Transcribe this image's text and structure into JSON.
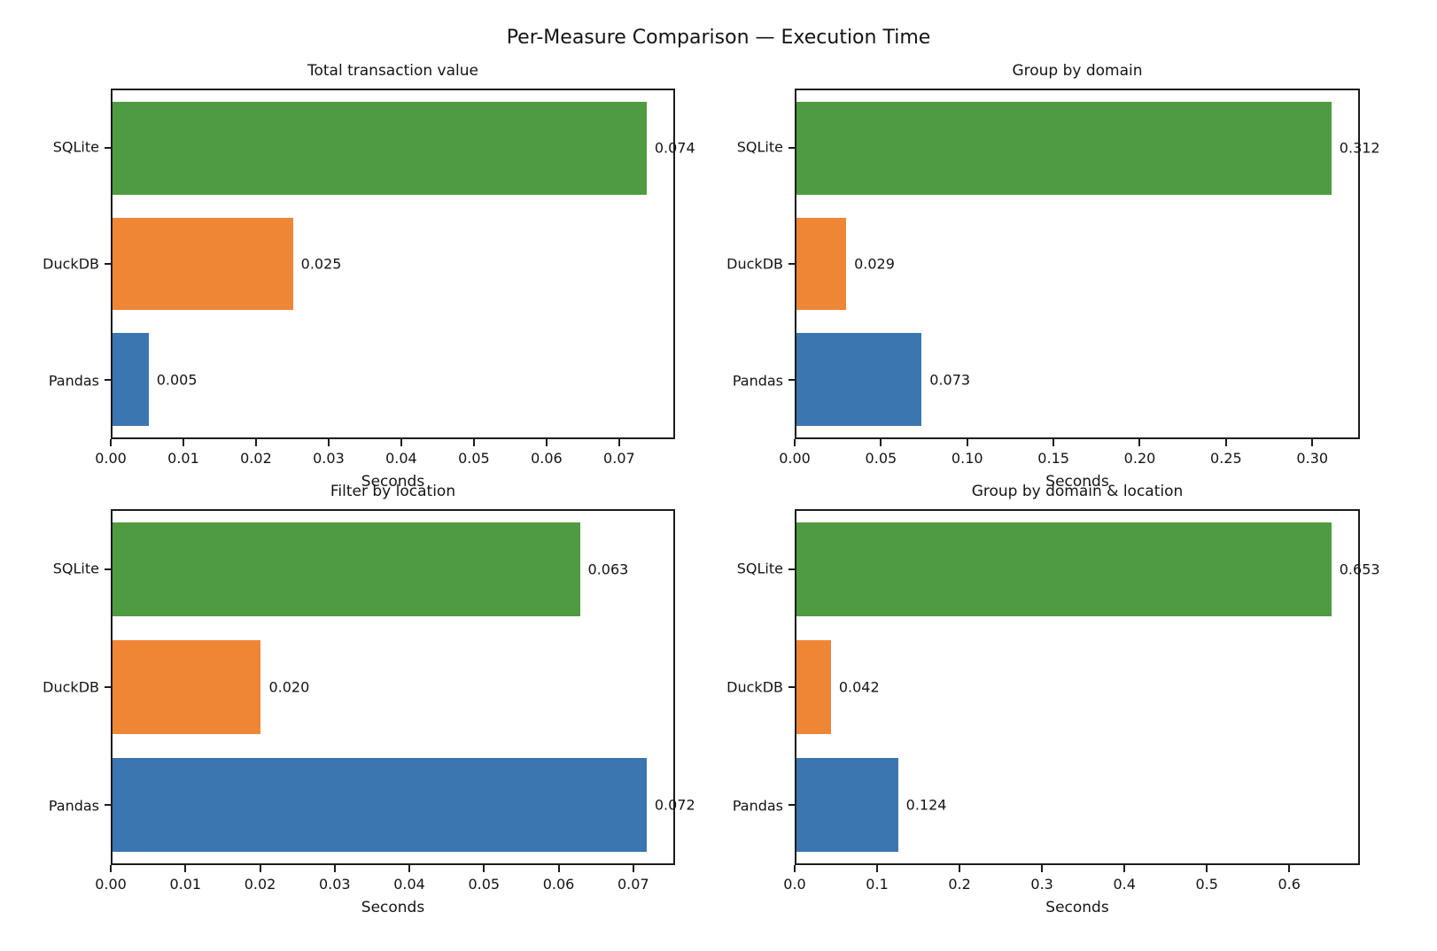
{
  "figure": {
    "suptitle": "Per-Measure Comparison — Execution Time",
    "background": "#ffffff",
    "text_color": "#141414",
    "spine_color": "#1c1c1c"
  },
  "palette": {
    "sqlite": "#4e9b41",
    "duckdb": "#ef8636",
    "pandas": "#3b76b0"
  },
  "chart_data": [
    {
      "type": "bar",
      "orientation": "horizontal",
      "title": "Total transaction value",
      "categories": [
        "SQLite",
        "DuckDB",
        "Pandas"
      ],
      "values": [
        0.074,
        0.025,
        0.005
      ],
      "value_labels": [
        "0.074",
        "0.025",
        "0.005"
      ],
      "bar_colors": [
        "#4e9b41",
        "#ef8636",
        "#3b76b0"
      ],
      "xlabel": "Seconds",
      "xlim": [
        0,
        0.0777
      ],
      "xtick_values": [
        0.0,
        0.01,
        0.02,
        0.03,
        0.04,
        0.05,
        0.06,
        0.07
      ],
      "xtick_labels": [
        "0.00",
        "0.01",
        "0.02",
        "0.03",
        "0.04",
        "0.05",
        "0.06",
        "0.07"
      ],
      "grid": false,
      "legend": false
    },
    {
      "type": "bar",
      "orientation": "horizontal",
      "title": "Group by domain",
      "categories": [
        "SQLite",
        "DuckDB",
        "Pandas"
      ],
      "values": [
        0.312,
        0.029,
        0.073
      ],
      "value_labels": [
        "0.312",
        "0.029",
        "0.073"
      ],
      "bar_colors": [
        "#4e9b41",
        "#ef8636",
        "#3b76b0"
      ],
      "xlabel": "Seconds",
      "xlim": [
        0,
        0.3276
      ],
      "xtick_values": [
        0.0,
        0.05,
        0.1,
        0.15,
        0.2,
        0.25,
        0.3
      ],
      "xtick_labels": [
        "0.00",
        "0.05",
        "0.10",
        "0.15",
        "0.20",
        "0.25",
        "0.30"
      ],
      "grid": false,
      "legend": false
    },
    {
      "type": "bar",
      "orientation": "horizontal",
      "title": "Filter by location",
      "categories": [
        "SQLite",
        "DuckDB",
        "Pandas"
      ],
      "values": [
        0.063,
        0.02,
        0.072
      ],
      "value_labels": [
        "0.063",
        "0.020",
        "0.072"
      ],
      "bar_colors": [
        "#4e9b41",
        "#ef8636",
        "#3b76b0"
      ],
      "xlabel": "Seconds",
      "xlim": [
        0,
        0.0756
      ],
      "xtick_values": [
        0.0,
        0.01,
        0.02,
        0.03,
        0.04,
        0.05,
        0.06,
        0.07
      ],
      "xtick_labels": [
        "0.00",
        "0.01",
        "0.02",
        "0.03",
        "0.04",
        "0.05",
        "0.06",
        "0.07"
      ],
      "grid": false,
      "legend": false
    },
    {
      "type": "bar",
      "orientation": "horizontal",
      "title": "Group by domain & location",
      "categories": [
        "SQLite",
        "DuckDB",
        "Pandas"
      ],
      "values": [
        0.653,
        0.042,
        0.124
      ],
      "value_labels": [
        "0.653",
        "0.042",
        "0.124"
      ],
      "bar_colors": [
        "#4e9b41",
        "#ef8636",
        "#3b76b0"
      ],
      "xlabel": "Seconds",
      "xlim": [
        0,
        0.6857
      ],
      "xtick_values": [
        0.0,
        0.1,
        0.2,
        0.3,
        0.4,
        0.5,
        0.6
      ],
      "xtick_labels": [
        "0.0",
        "0.1",
        "0.2",
        "0.3",
        "0.4",
        "0.5",
        "0.6"
      ],
      "grid": false,
      "legend": false
    }
  ]
}
